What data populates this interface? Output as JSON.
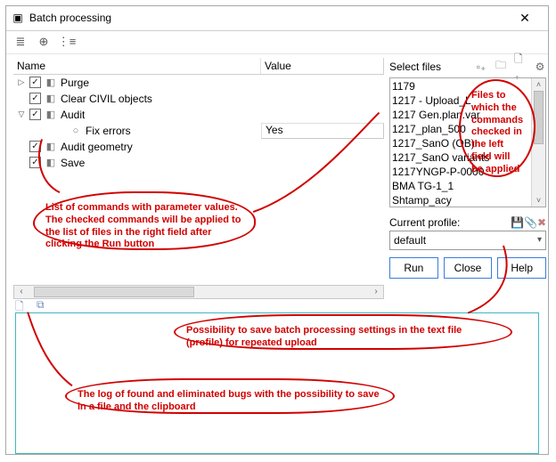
{
  "window": {
    "title": "Batch processing",
    "close_glyph": "✕",
    "icon_glyph": "▣"
  },
  "toolbar": {
    "expand_glyph": "≣",
    "add_glyph": "⊕",
    "list_glyph": "⋮≡"
  },
  "commands": {
    "header_name": "Name",
    "header_value": "Value",
    "nodes": [
      {
        "indent": 0,
        "expander": "▷",
        "checked": true,
        "icon": "◧",
        "label": "Purge",
        "value": ""
      },
      {
        "indent": 0,
        "expander": "",
        "checked": true,
        "icon": "◧",
        "label": "Clear CIVIL objects",
        "value": ""
      },
      {
        "indent": 0,
        "expander": "▽",
        "checked": true,
        "icon": "◧",
        "label": "Audit",
        "value": ""
      },
      {
        "indent": 1,
        "expander": "",
        "checked": null,
        "icon": "○",
        "label": "Fix errors",
        "value": "Yes"
      },
      {
        "indent": 0,
        "expander": "",
        "checked": true,
        "icon": "◧",
        "label": "Audit geometry",
        "value": ""
      },
      {
        "indent": 0,
        "expander": "",
        "checked": true,
        "icon": "◧",
        "label": "Save",
        "value": ""
      }
    ],
    "checkmark": "✓"
  },
  "scrollbar": {
    "left": "‹",
    "right": "›",
    "up": "˄",
    "down": "˅"
  },
  "select_files": {
    "label": "Select files",
    "icons": {
      "a": "▫₊",
      "b": "🗀",
      "c": "🗋₊",
      "d": "⚙"
    },
    "items": [
      "1179",
      "1217 - Upload_L",
      "1217 Gen.plan.var",
      "1217_plan_500",
      "1217_SanO (OB)",
      "1217_SanO variants",
      "1217YNGP-P-0000",
      "BMA TG-1_1",
      "Shtamp_acy"
    ]
  },
  "profile": {
    "label": "Current profile:",
    "value": "default",
    "save_glyph": "💾",
    "attach_glyph": "📎",
    "delete_glyph": "✖"
  },
  "buttons": {
    "run": "Run",
    "close": "Close",
    "help": "Help"
  },
  "log_tools": {
    "save_glyph": "🗋",
    "copy_glyph": "⧉"
  },
  "annotations": {
    "files": "Files to which the commands checked in the left field will be applied",
    "commands": "List of commands with parameter values. The checked commands will be applied to the list of files in the right field after clicking the Run button",
    "profile": "Possibility to save batch processing settings in the text file (profile) for repeated upload",
    "log": "The log of found and eliminated bugs with the possibility to save in a file and the clipboard"
  },
  "colors": {
    "window_border": "#a8a8a8",
    "button_border": "#3b7dd8",
    "log_border": "#3fb7bf",
    "annotation": "#d10000",
    "background": "#ffffff",
    "save_icon": "#2a55b8"
  }
}
